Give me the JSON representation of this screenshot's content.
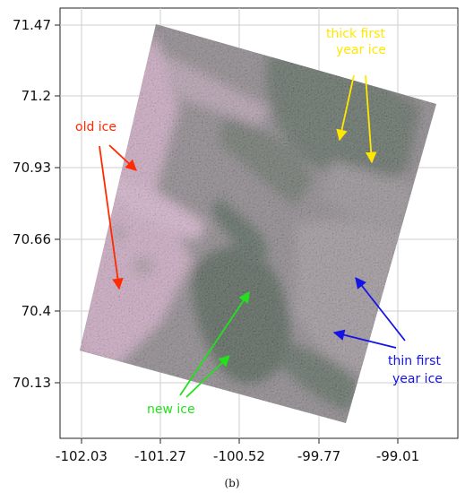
{
  "figure": {
    "caption": "(b)",
    "x_ticks": [
      "-102.03",
      "-101.27",
      "-100.52",
      "-99.77",
      "-99.01"
    ],
    "y_ticks": [
      "71.47",
      "71.2",
      "70.93",
      "70.66",
      "70.4",
      "70.13"
    ],
    "grid": true,
    "image": {
      "subject": "satellite SAR image of sea ice",
      "tint_pink": "#c59bb8",
      "tint_dark_green": "#3b4a3f",
      "tint_grey": "#7c7378"
    },
    "annotations": [
      {
        "id": "old-ice",
        "label": "old ice",
        "color": "#ff2a00",
        "lines": [
          "old ice"
        ]
      },
      {
        "id": "thick-first-year-ice",
        "label": "thick first year ice",
        "color": "#ffe800",
        "lines": [
          "thick first",
          "year ice"
        ]
      },
      {
        "id": "thin-first-year-ice",
        "label": "thin first year ice",
        "color": "#1414e6",
        "lines": [
          "thin first",
          "year ice"
        ]
      },
      {
        "id": "new-ice",
        "label": "new ice",
        "color": "#22e11c",
        "lines": [
          "new ice"
        ]
      }
    ]
  }
}
